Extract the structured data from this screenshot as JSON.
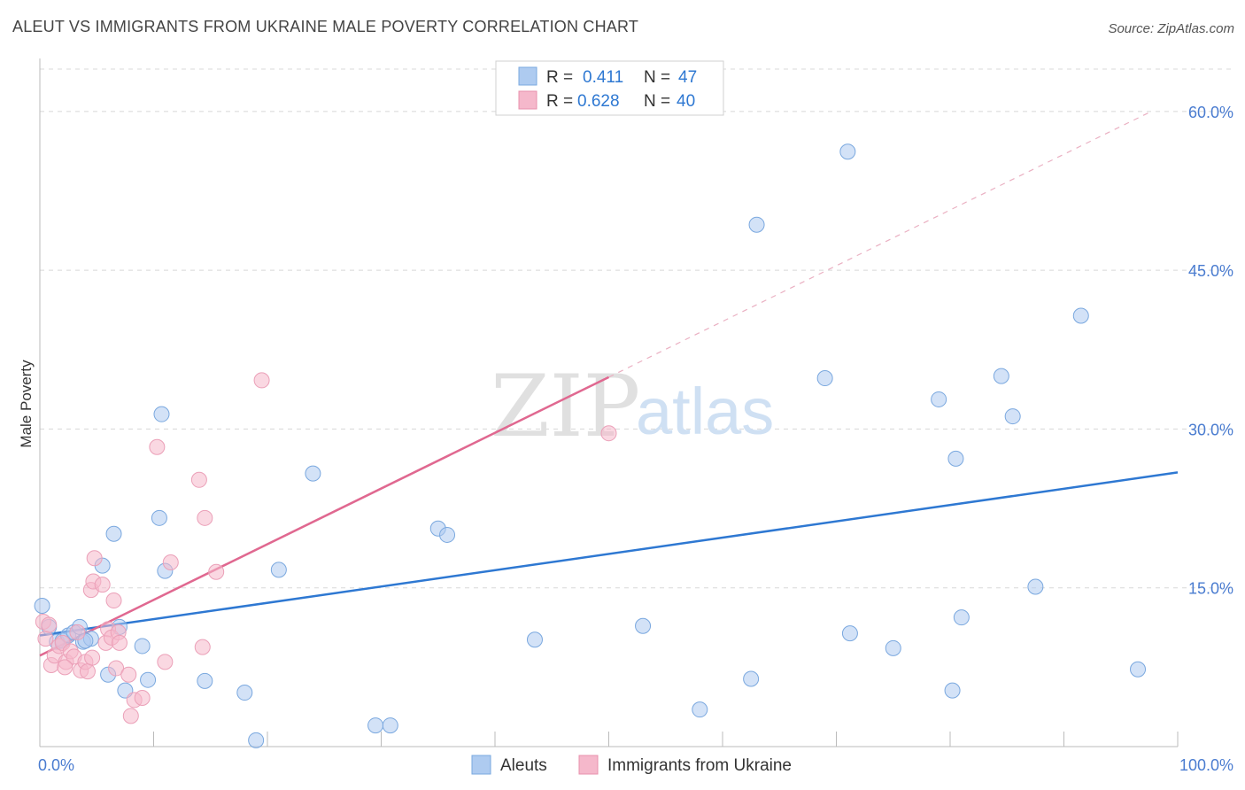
{
  "header": {
    "title": "ALEUT VS IMMIGRANTS FROM UKRAINE MALE POVERTY CORRELATION CHART",
    "source": "Source: ZipAtlas.com"
  },
  "watermark": {
    "zip": "ZIP",
    "atlas": "atlas"
  },
  "colors": {
    "blue": "#2e78d2",
    "blue_fill": "#aecbf0",
    "pink": "#e06890",
    "pink_fill": "#f5b8cb",
    "grid": "#d8d8d8",
    "tick_label": "#4a7cd0"
  },
  "chart_data": {
    "type": "scatter",
    "title": "ALEUT VS IMMIGRANTS FROM UKRAINE MALE POVERTY CORRELATION CHART",
    "xlabel": "",
    "ylabel": "Male Poverty",
    "xlim": [
      0,
      100
    ],
    "ylim": [
      0,
      64
    ],
    "x_tick_labels": [
      {
        "value": 0,
        "label": "0.0%"
      },
      {
        "value": 100,
        "label": "100.0%"
      }
    ],
    "y_ticks": [
      {
        "value": 15,
        "label": "15.0%"
      },
      {
        "value": 30,
        "label": "30.0%"
      },
      {
        "value": 45,
        "label": "45.0%"
      },
      {
        "value": 60,
        "label": "60.0%"
      }
    ],
    "x_minor_ticks": [
      10,
      20,
      30,
      40,
      50,
      60,
      70,
      80,
      90,
      100
    ],
    "grid": true,
    "stats_legend": [
      {
        "series": "Aleuts",
        "r_label": "R =",
        "r_value": "0.411",
        "n_label": "N =",
        "n_value": "47"
      },
      {
        "series": "Immigrants from Ukraine",
        "r_label": "R =",
        "r_value": "0.628",
        "n_label": "N =",
        "n_value": "40"
      }
    ],
    "series": [
      {
        "name": "Aleuts",
        "color": "blue",
        "points": [
          [
            0.2,
            13.3
          ],
          [
            0.8,
            11.3
          ],
          [
            1.5,
            9.9
          ],
          [
            2.0,
            10.0
          ],
          [
            2.5,
            10.5
          ],
          [
            3.0,
            10.8
          ],
          [
            3.5,
            11.3
          ],
          [
            3.8,
            9.9
          ],
          [
            4.5,
            10.2
          ],
          [
            5.5,
            17.1
          ],
          [
            6.0,
            6.8
          ],
          [
            6.5,
            20.1
          ],
          [
            7.0,
            11.3
          ],
          [
            7.5,
            5.3
          ],
          [
            9.0,
            9.5
          ],
          [
            9.5,
            6.3
          ],
          [
            10.5,
            21.6
          ],
          [
            10.7,
            31.4
          ],
          [
            11.0,
            16.6
          ],
          [
            14.5,
            6.2
          ],
          [
            18.0,
            5.1
          ],
          [
            19.0,
            0.6
          ],
          [
            21.0,
            16.7
          ],
          [
            24.0,
            25.8
          ],
          [
            29.5,
            2.0
          ],
          [
            30.8,
            2.0
          ],
          [
            35.0,
            20.6
          ],
          [
            35.8,
            20.0
          ],
          [
            43.5,
            10.1
          ],
          [
            53.0,
            11.4
          ],
          [
            58.0,
            3.5
          ],
          [
            62.5,
            6.4
          ],
          [
            63.0,
            49.3
          ],
          [
            69.0,
            34.8
          ],
          [
            71.0,
            56.2
          ],
          [
            71.2,
            10.7
          ],
          [
            75.0,
            9.3
          ],
          [
            79.0,
            32.8
          ],
          [
            80.2,
            5.3
          ],
          [
            80.5,
            27.2
          ],
          [
            81.0,
            12.2
          ],
          [
            84.5,
            35.0
          ],
          [
            85.5,
            31.2
          ],
          [
            87.5,
            15.1
          ],
          [
            91.5,
            40.7
          ],
          [
            96.5,
            7.3
          ],
          [
            4.0,
            10.0
          ]
        ],
        "trendline": {
          "x": [
            0,
            100
          ],
          "y": [
            10.5,
            25.9
          ]
        }
      },
      {
        "name": "Immigrants from Ukraine",
        "color": "pink",
        "points": [
          [
            0.3,
            11.8
          ],
          [
            0.5,
            10.2
          ],
          [
            0.8,
            11.5
          ],
          [
            1.0,
            7.7
          ],
          [
            1.3,
            8.6
          ],
          [
            1.7,
            9.5
          ],
          [
            2.0,
            9.8
          ],
          [
            2.3,
            8.0
          ],
          [
            2.7,
            9.0
          ],
          [
            3.0,
            8.5
          ],
          [
            3.3,
            10.8
          ],
          [
            3.6,
            7.2
          ],
          [
            4.0,
            8.0
          ],
          [
            4.2,
            7.1
          ],
          [
            4.5,
            14.8
          ],
          [
            4.6,
            8.4
          ],
          [
            4.7,
            15.6
          ],
          [
            4.8,
            17.8
          ],
          [
            5.5,
            15.3
          ],
          [
            5.8,
            9.8
          ],
          [
            6.0,
            11.1
          ],
          [
            6.3,
            10.3
          ],
          [
            6.5,
            13.8
          ],
          [
            6.7,
            7.4
          ],
          [
            6.9,
            10.8
          ],
          [
            7.0,
            9.8
          ],
          [
            7.8,
            6.8
          ],
          [
            8.0,
            2.9
          ],
          [
            8.3,
            4.4
          ],
          [
            9.0,
            4.6
          ],
          [
            10.3,
            28.3
          ],
          [
            11.0,
            8.0
          ],
          [
            11.5,
            17.4
          ],
          [
            14.0,
            25.2
          ],
          [
            14.3,
            9.4
          ],
          [
            14.5,
            21.6
          ],
          [
            15.5,
            16.5
          ],
          [
            19.5,
            34.6
          ],
          [
            50.0,
            29.6
          ],
          [
            2.2,
            7.5
          ]
        ],
        "trendline": {
          "x": [
            0,
            50
          ],
          "y": [
            8.6,
            34.9
          ]
        },
        "trendline_extension": {
          "x": [
            50,
            97.5
          ],
          "y": [
            34.9,
            59.9
          ]
        }
      }
    ],
    "legend": [
      {
        "name": "Aleuts",
        "color": "blue"
      },
      {
        "name": "Immigrants from Ukraine",
        "color": "pink"
      }
    ]
  }
}
